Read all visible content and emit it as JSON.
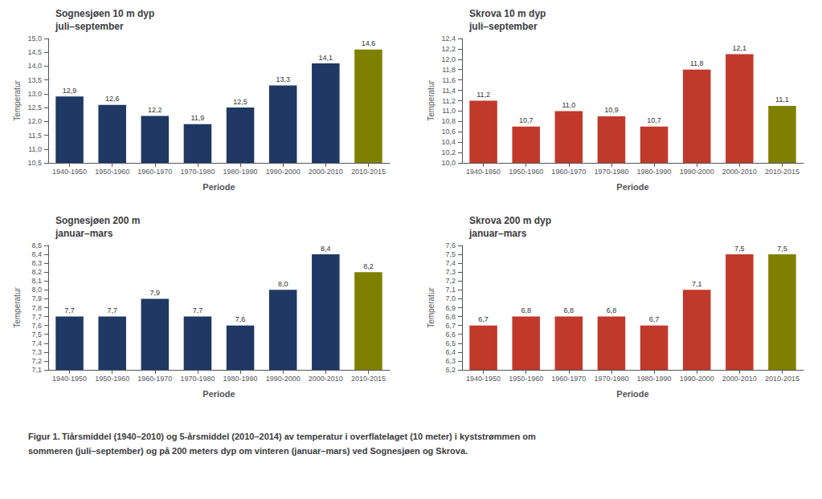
{
  "chart_data": [
    {
      "type": "bar",
      "title": "Sognesjøen 10 m dyp\njuli–september",
      "categories": [
        "1940-1950",
        "1950-1960",
        "1960-1970",
        "1970-1980",
        "1980-1990",
        "1990-2000",
        "2000-2010",
        "2010-2015"
      ],
      "values": [
        12.9,
        12.6,
        12.2,
        11.9,
        12.5,
        13.3,
        14.1,
        14.6
      ],
      "value_labels": [
        "12,9",
        "12,6",
        "12,2",
        "11,9",
        "12,5",
        "13,3",
        "14,1",
        "14,6"
      ],
      "colors": [
        "#1f3864",
        "#1f3864",
        "#1f3864",
        "#1f3864",
        "#1f3864",
        "#1f3864",
        "#1f3864",
        "#808000"
      ],
      "ylim": [
        10.5,
        15.0
      ],
      "yticks": [
        {
          "value": 10.5,
          "label": "10,5"
        },
        {
          "value": 11.0,
          "label": "11,0"
        },
        {
          "value": 11.5,
          "label": "11,5"
        },
        {
          "value": 12.0,
          "label": "12,0"
        },
        {
          "value": 12.5,
          "label": "12,5"
        },
        {
          "value": 13.0,
          "label": "13,0"
        },
        {
          "value": 13.5,
          "label": "13,5"
        },
        {
          "value": 14.0,
          "label": "14,0"
        },
        {
          "value": 14.5,
          "label": "14,5"
        },
        {
          "value": 15.0,
          "label": "15,0"
        }
      ],
      "xlabel": "Periode",
      "ylabel": "Temperatur",
      "data_labels": true,
      "grid": false
    },
    {
      "type": "bar",
      "title": "Skrova 10 m dyp\njuli–september",
      "categories": [
        "1940-1950",
        "1950-1960",
        "1960-1970",
        "1970-1980",
        "1980-1990",
        "1990-2000",
        "2000-2010",
        "2010-2015"
      ],
      "values": [
        11.2,
        10.7,
        11.0,
        10.9,
        10.7,
        11.8,
        12.1,
        11.1
      ],
      "value_labels": [
        "11,2",
        "10,7",
        "11,0",
        "10,9",
        "10,7",
        "11,8",
        "12,1",
        "11,1"
      ],
      "colors": [
        "#c0392b",
        "#c0392b",
        "#c0392b",
        "#c0392b",
        "#c0392b",
        "#c0392b",
        "#c0392b",
        "#808000"
      ],
      "ylim": [
        10.0,
        12.4
      ],
      "yticks": [
        {
          "value": 10.0,
          "label": "10,0"
        },
        {
          "value": 10.2,
          "label": "10,2"
        },
        {
          "value": 10.4,
          "label": "10,4"
        },
        {
          "value": 10.6,
          "label": "10,6"
        },
        {
          "value": 10.8,
          "label": "10,8"
        },
        {
          "value": 11.0,
          "label": "11,0"
        },
        {
          "value": 11.2,
          "label": "11,2"
        },
        {
          "value": 11.4,
          "label": "11,4"
        },
        {
          "value": 11.6,
          "label": "11,6"
        },
        {
          "value": 11.8,
          "label": "11,8"
        },
        {
          "value": 12.0,
          "label": "12,0"
        },
        {
          "value": 12.2,
          "label": "12,2"
        },
        {
          "value": 12.4,
          "label": "12,4"
        }
      ],
      "xlabel": "Periode",
      "ylabel": "Temperatur",
      "data_labels": true,
      "grid": false
    },
    {
      "type": "bar",
      "title": "Sognesjøen 200 m\njanuar–mars",
      "categories": [
        "1940-1950",
        "1950-1960",
        "1960-1970",
        "1970-1980",
        "1980-1990",
        "1990-2000",
        "2000-2010",
        "2010-2015"
      ],
      "values": [
        7.7,
        7.7,
        7.9,
        7.7,
        7.6,
        8.0,
        8.4,
        8.2
      ],
      "value_labels": [
        "7,7",
        "7,7",
        "7,9",
        "7,7",
        "7,6",
        "8,0",
        "8,4",
        "8,2"
      ],
      "colors": [
        "#1f3864",
        "#1f3864",
        "#1f3864",
        "#1f3864",
        "#1f3864",
        "#1f3864",
        "#1f3864",
        "#808000"
      ],
      "ylim": [
        7.1,
        8.5
      ],
      "yticks": [
        {
          "value": 7.1,
          "label": "7,1"
        },
        {
          "value": 7.2,
          "label": "7,2"
        },
        {
          "value": 7.3,
          "label": "7,3"
        },
        {
          "value": 7.4,
          "label": "7,4"
        },
        {
          "value": 7.5,
          "label": "7,5"
        },
        {
          "value": 7.6,
          "label": "7,6"
        },
        {
          "value": 7.7,
          "label": "7,7"
        },
        {
          "value": 7.8,
          "label": "7,8"
        },
        {
          "value": 7.9,
          "label": "7,9"
        },
        {
          "value": 8.0,
          "label": "8,0"
        },
        {
          "value": 8.1,
          "label": "8,1"
        },
        {
          "value": 8.2,
          "label": "8,2"
        },
        {
          "value": 8.3,
          "label": "8,3"
        },
        {
          "value": 8.4,
          "label": "8,4"
        },
        {
          "value": 8.5,
          "label": "8,5"
        }
      ],
      "xlabel": "Periode",
      "ylabel": "Temperatur",
      "data_labels": true,
      "grid": false
    },
    {
      "type": "bar",
      "title": "Skrova 200 m dyp\njanuar–mars",
      "categories": [
        "1940-1950",
        "1950-1960",
        "1960-1970",
        "1970-1980",
        "1980-1990",
        "1990-2000",
        "2000-2010",
        "2010-2015"
      ],
      "values": [
        6.7,
        6.8,
        6.8,
        6.8,
        6.7,
        7.1,
        7.5,
        7.5
      ],
      "value_labels": [
        "6,7",
        "6,8",
        "6,8",
        "6,8",
        "6,7",
        "7,1",
        "7,5",
        "7,5"
      ],
      "colors": [
        "#c0392b",
        "#c0392b",
        "#c0392b",
        "#c0392b",
        "#c0392b",
        "#c0392b",
        "#c0392b",
        "#808000"
      ],
      "ylim": [
        6.2,
        7.6
      ],
      "yticks": [
        {
          "value": 6.2,
          "label": "6,2"
        },
        {
          "value": 6.3,
          "label": "6,3"
        },
        {
          "value": 6.4,
          "label": "6,4"
        },
        {
          "value": 6.5,
          "label": "6,5"
        },
        {
          "value": 6.6,
          "label": "6,6"
        },
        {
          "value": 6.7,
          "label": "6,7"
        },
        {
          "value": 6.8,
          "label": "6,8"
        },
        {
          "value": 6.9,
          "label": "6,9"
        },
        {
          "value": 7.0,
          "label": "7,0"
        },
        {
          "value": 7.1,
          "label": "7,1"
        },
        {
          "value": 7.2,
          "label": "7,2"
        },
        {
          "value": 7.3,
          "label": "7,3"
        },
        {
          "value": 7.4,
          "label": "7,4"
        },
        {
          "value": 7.5,
          "label": "7,5"
        },
        {
          "value": 7.6,
          "label": "7,6"
        }
      ],
      "xlabel": "Periode",
      "ylabel": "Temperatur",
      "data_labels": true,
      "grid": false
    }
  ],
  "caption": "Figur 1. Tiårsmiddel (1940–2010) og 5-årsmiddel (2010–2014) av temperatur i overflatelaget (10 meter) i kyststrømmen om\nsommeren (juli–september) og på 200 meters dyp om vinteren (januar–mars) ved Sognesjøen og Skrova."
}
